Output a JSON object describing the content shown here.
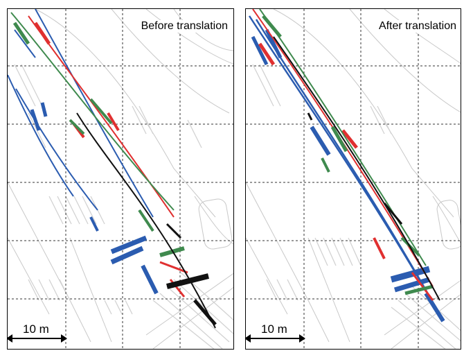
{
  "panels": {
    "left": {
      "title": "Before translation",
      "scale_label": "10 m"
    },
    "right": {
      "title": "After translation",
      "scale_label": "10 m"
    }
  },
  "colors": {
    "blue": "#2b5cb0",
    "red": "#e03030",
    "green": "#3f8a4e",
    "black": "#111111",
    "map": "#c8c8c8",
    "grid": "#333333"
  }
}
